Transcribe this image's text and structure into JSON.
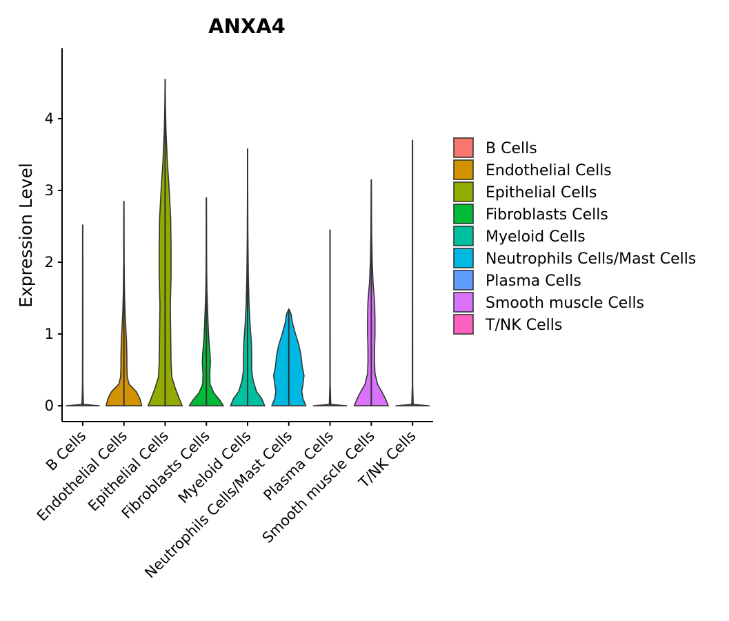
{
  "chart_data": {
    "type": "violin",
    "title": "ANXA4",
    "xlabel": "",
    "ylabel": "Expression Level",
    "ylim": [
      -0.22,
      4.98
    ],
    "yticks": [
      0,
      1,
      2,
      3,
      4
    ],
    "categories": [
      "B Cells",
      "Endothelial Cells",
      "Epithelial Cells",
      "Fibroblasts Cells",
      "Myeloid Cells",
      "Neutrophils Cells/Mast Cells",
      "Plasma Cells",
      "Smooth muscle Cells",
      "T/NK Cells"
    ],
    "series": [
      {
        "name": "B Cells",
        "color": "#F8766D",
        "max": 2.52,
        "profile": [
          [
            0,
            0.45
          ],
          [
            0.02,
            0.02
          ],
          [
            0.3,
            0.004
          ],
          [
            2.52,
            0.0
          ]
        ]
      },
      {
        "name": "Endothelial Cells",
        "color": "#D39200",
        "max": 2.85,
        "profile": [
          [
            0,
            0.48
          ],
          [
            0.1,
            0.43
          ],
          [
            0.2,
            0.33
          ],
          [
            0.3,
            0.14
          ],
          [
            0.4,
            0.09
          ],
          [
            0.55,
            0.08
          ],
          [
            0.7,
            0.08
          ],
          [
            0.9,
            0.07
          ],
          [
            1.1,
            0.05
          ],
          [
            1.3,
            0.03
          ],
          [
            1.6,
            0.015
          ],
          [
            2.0,
            0.006
          ],
          [
            2.85,
            0.0
          ]
        ]
      },
      {
        "name": "Epithelial Cells",
        "color": "#93AA00",
        "max": 4.55,
        "profile": [
          [
            0,
            0.46
          ],
          [
            0.1,
            0.38
          ],
          [
            0.25,
            0.27
          ],
          [
            0.4,
            0.18
          ],
          [
            0.6,
            0.16
          ],
          [
            1.0,
            0.15
          ],
          [
            1.4,
            0.14
          ],
          [
            1.8,
            0.16
          ],
          [
            2.2,
            0.16
          ],
          [
            2.6,
            0.15
          ],
          [
            3.0,
            0.11
          ],
          [
            3.4,
            0.06
          ],
          [
            3.8,
            0.025
          ],
          [
            4.2,
            0.008
          ],
          [
            4.55,
            0.0
          ]
        ]
      },
      {
        "name": "Fibroblasts Cells",
        "color": "#00BA38",
        "max": 2.9,
        "profile": [
          [
            0,
            0.46
          ],
          [
            0.08,
            0.36
          ],
          [
            0.18,
            0.2
          ],
          [
            0.3,
            0.1
          ],
          [
            0.45,
            0.09
          ],
          [
            0.6,
            0.11
          ],
          [
            0.72,
            0.1
          ],
          [
            0.9,
            0.07
          ],
          [
            1.1,
            0.05
          ],
          [
            1.3,
            0.035
          ],
          [
            1.6,
            0.015
          ],
          [
            2.0,
            0.006
          ],
          [
            2.9,
            0.0
          ]
        ]
      },
      {
        "name": "Myeloid Cells",
        "color": "#00C19F",
        "max": 3.58,
        "profile": [
          [
            0,
            0.46
          ],
          [
            0.1,
            0.38
          ],
          [
            0.2,
            0.24
          ],
          [
            0.35,
            0.15
          ],
          [
            0.5,
            0.11
          ],
          [
            0.7,
            0.11
          ],
          [
            0.9,
            0.1
          ],
          [
            1.1,
            0.07
          ],
          [
            1.4,
            0.04
          ],
          [
            1.8,
            0.02
          ],
          [
            2.4,
            0.008
          ],
          [
            3.58,
            0.0
          ]
        ]
      },
      {
        "name": "Neutrophils Cells/Mast Cells",
        "color": "#00B9E3",
        "max": 1.35,
        "profile": [
          [
            0,
            0.46
          ],
          [
            0.1,
            0.38
          ],
          [
            0.2,
            0.35
          ],
          [
            0.3,
            0.38
          ],
          [
            0.42,
            0.41
          ],
          [
            0.55,
            0.36
          ],
          [
            0.7,
            0.33
          ],
          [
            0.85,
            0.27
          ],
          [
            1.0,
            0.18
          ],
          [
            1.15,
            0.1
          ],
          [
            1.28,
            0.06
          ],
          [
            1.35,
            0.0
          ]
        ]
      },
      {
        "name": "Plasma Cells",
        "color": "#619CFF",
        "max": 2.45,
        "profile": [
          [
            0,
            0.45
          ],
          [
            0.02,
            0.02
          ],
          [
            0.3,
            0.004
          ],
          [
            2.45,
            0.0
          ]
        ]
      },
      {
        "name": "Smooth muscle Cells",
        "color": "#DB72FB",
        "max": 3.15,
        "profile": [
          [
            0,
            0.46
          ],
          [
            0.1,
            0.38
          ],
          [
            0.2,
            0.28
          ],
          [
            0.3,
            0.17
          ],
          [
            0.45,
            0.1
          ],
          [
            0.6,
            0.09
          ],
          [
            0.8,
            0.09
          ],
          [
            1.0,
            0.1
          ],
          [
            1.2,
            0.1
          ],
          [
            1.45,
            0.09
          ],
          [
            1.7,
            0.05
          ],
          [
            2.0,
            0.025
          ],
          [
            2.4,
            0.01
          ],
          [
            3.15,
            0.0
          ]
        ]
      },
      {
        "name": "T/NK Cells",
        "color": "#FF61C3",
        "max": 3.7,
        "profile": [
          [
            0,
            0.45
          ],
          [
            0.02,
            0.02
          ],
          [
            0.3,
            0.004
          ],
          [
            3.7,
            0.0
          ]
        ]
      }
    ],
    "legend": {
      "placement": "right",
      "items": [
        {
          "label": "B Cells",
          "color": "#F8766D"
        },
        {
          "label": "Endothelial Cells",
          "color": "#D39200"
        },
        {
          "label": "Epithelial Cells",
          "color": "#93AA00"
        },
        {
          "label": "Fibroblasts Cells",
          "color": "#00BA38"
        },
        {
          "label": "Myeloid Cells",
          "color": "#00C19F"
        },
        {
          "label": "Neutrophils Cells/Mast Cells",
          "color": "#00B9E3"
        },
        {
          "label": "Plasma Cells",
          "color": "#619CFF"
        },
        {
          "label": "Smooth muscle Cells",
          "color": "#DB72FB"
        },
        {
          "label": "T/NK Cells",
          "color": "#FF61C3"
        }
      ]
    }
  }
}
